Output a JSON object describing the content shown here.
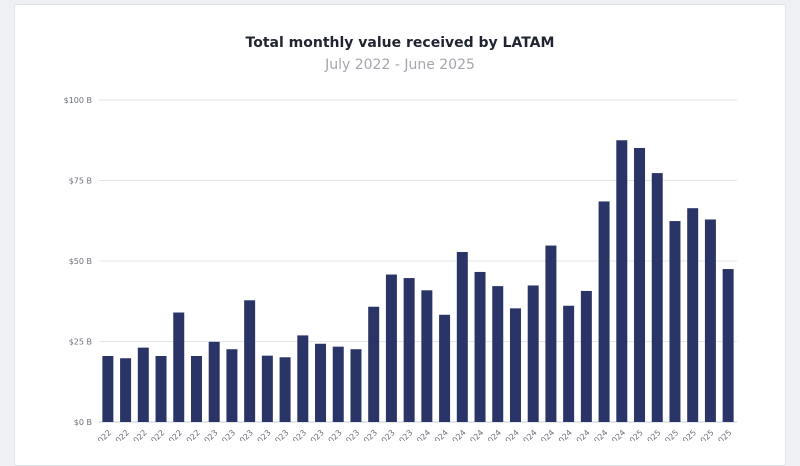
{
  "chart_data": {
    "type": "bar",
    "title": "Total monthly value received by LATAM",
    "subtitle": "July 2022 - June 2025",
    "xlabel": "",
    "ylabel": "",
    "ylim": [
      0,
      100
    ],
    "yticks": [
      {
        "value": 0,
        "label": "$0 B"
      },
      {
        "value": 25,
        "label": "$25 B"
      },
      {
        "value": 50,
        "label": "$50 B"
      },
      {
        "value": 75,
        "label": "$75 B"
      },
      {
        "value": 100,
        "label": "$100 B"
      }
    ],
    "grid": true,
    "bar_color": "#2b3467",
    "categories": [
      "Jul 2022",
      "Aug 2022",
      "Sep 2022",
      "Oct 2022",
      "Nov 2022",
      "Dec 2022",
      "Jan 2023",
      "Feb 2023",
      "Mar 2023",
      "Apr 2023",
      "May 2023",
      "Jun 2023",
      "Jul 2023",
      "Aug 2023",
      "Sep 2023",
      "Oct 2023",
      "Nov 2023",
      "Dec 2023",
      "Jan 2024",
      "Feb 2024",
      "Mar 2024",
      "Apr 2024",
      "May 2024",
      "Jun 2024",
      "Jul 2024",
      "Aug 2024",
      "Sep 2024",
      "Oct 2024",
      "Nov 2024",
      "Dec 2024",
      "Jan 2025",
      "Feb 2025",
      "Mar 2025",
      "Apr 2025",
      "May 2025",
      "Jun 2025"
    ],
    "values": [
      20.5,
      19.8,
      23.1,
      20.5,
      34.0,
      20.5,
      24.9,
      22.6,
      37.8,
      20.6,
      20.1,
      26.9,
      24.3,
      23.4,
      22.6,
      35.8,
      45.8,
      44.7,
      40.9,
      33.3,
      52.8,
      46.6,
      42.2,
      35.3,
      42.4,
      54.8,
      36.1,
      40.7,
      68.5,
      87.5,
      85.1,
      77.3,
      62.4,
      66.4,
      62.9,
      47.5
    ]
  }
}
